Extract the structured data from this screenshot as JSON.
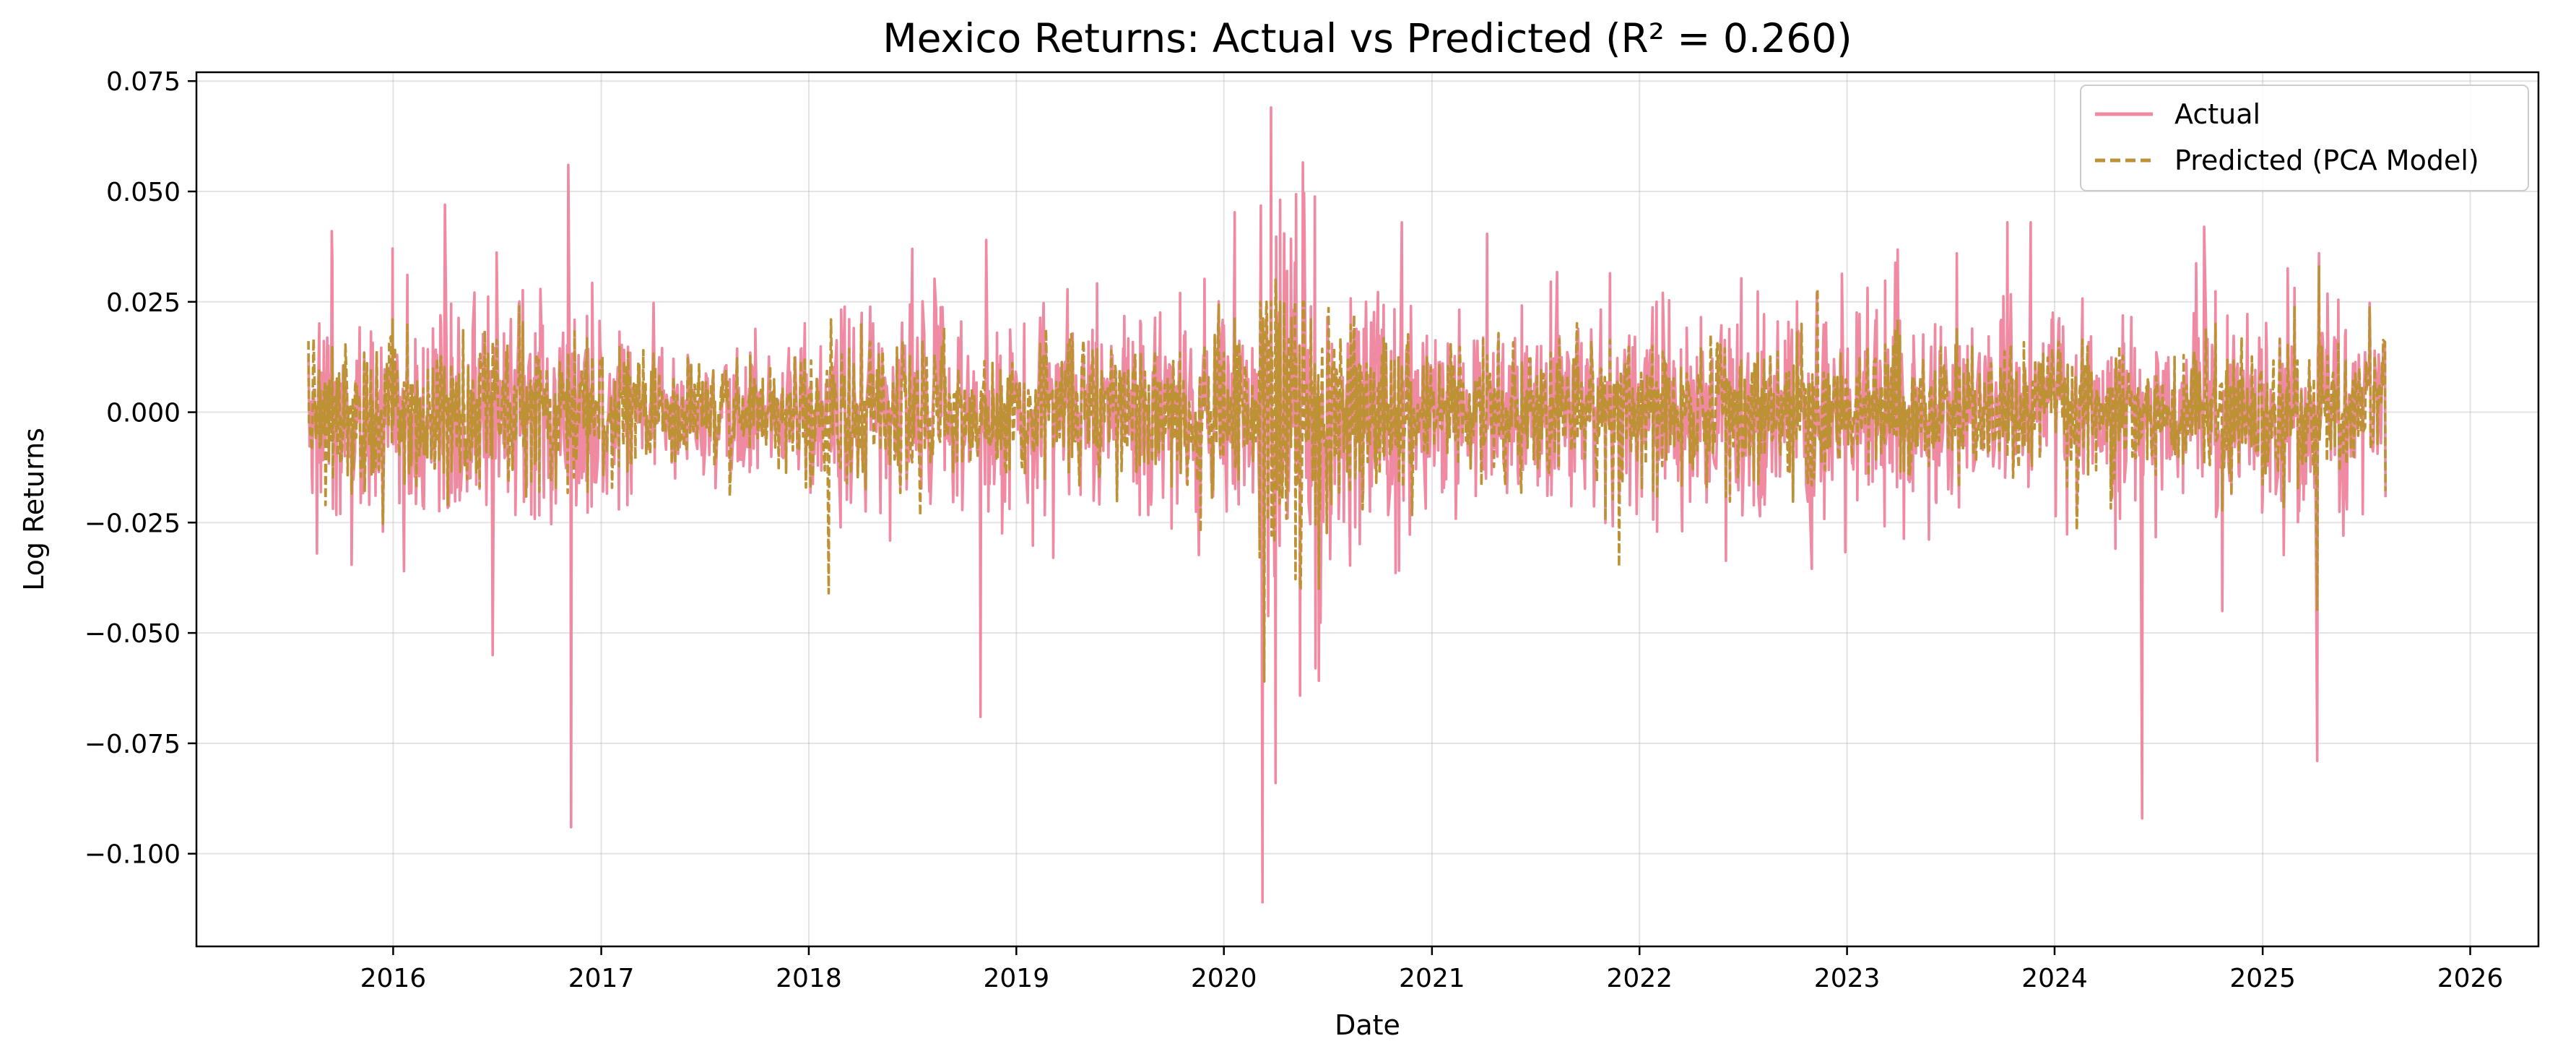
{
  "chart_data": {
    "type": "line",
    "title": "Mexico Returns: Actual vs Predicted (R² = 0.260)",
    "xlabel": "Date",
    "ylabel": "Log Returns",
    "x_range": [
      "2015-01-20",
      "2026-05-01"
    ],
    "x_ticks": [
      "2016",
      "2017",
      "2018",
      "2019",
      "2020",
      "2021",
      "2022",
      "2023",
      "2024",
      "2025",
      "2026"
    ],
    "ylim": [
      -0.121,
      0.077
    ],
    "y_ticks": [
      0.075,
      0.05,
      0.025,
      0.0,
      -0.025,
      -0.05,
      -0.075,
      -0.1
    ],
    "y_tick_labels": [
      "0.075",
      "0.050",
      "0.025",
      "0.000",
      "−0.025",
      "−0.050",
      "−0.075",
      "−0.100"
    ],
    "grid": true,
    "legend_position": "top-right",
    "series": [
      {
        "name": "Actual",
        "color": "#f08aa2",
        "style": "solid",
        "x_start": "2015-08-05",
        "x_end": "2025-08-05",
        "frequency": "daily (trading days)",
        "approx_std": 0.011,
        "notable_points": [
          {
            "x": "2015-08-20",
            "y": -0.032
          },
          {
            "x": "2015-09-15",
            "y": 0.041
          },
          {
            "x": "2016-01-20",
            "y": -0.036
          },
          {
            "x": "2016-04-01",
            "y": 0.047
          },
          {
            "x": "2016-06-24",
            "y": -0.055
          },
          {
            "x": "2016-11-09",
            "y": -0.094
          },
          {
            "x": "2016-11-04",
            "y": 0.056
          },
          {
            "x": "2018-07-02",
            "y": 0.037
          },
          {
            "x": "2018-10-30",
            "y": -0.069
          },
          {
            "x": "2018-11-10",
            "y": 0.039
          },
          {
            "x": "2020-03-09",
            "y": -0.111
          },
          {
            "x": "2020-03-24",
            "y": 0.069
          },
          {
            "x": "2020-04-01",
            "y": -0.084
          },
          {
            "x": "2020-06-10",
            "y": -0.058
          },
          {
            "x": "2020-11-09",
            "y": 0.043
          },
          {
            "x": "2023-10-10",
            "y": 0.043
          },
          {
            "x": "2023-11-20",
            "y": 0.043
          },
          {
            "x": "2024-06-03",
            "y": -0.092
          },
          {
            "x": "2024-09-20",
            "y": 0.042
          },
          {
            "x": "2025-04-07",
            "y": -0.079
          },
          {
            "x": "2025-04-10",
            "y": 0.036
          }
        ]
      },
      {
        "name": "Predicted (PCA Model)",
        "color": "#bd9235",
        "style": "dashed",
        "x_start": "2015-08-05",
        "x_end": "2025-08-05",
        "frequency": "daily (trading days)",
        "approx_std": 0.0065,
        "notable_points": [
          {
            "x": "2017-08-15",
            "y": -0.019
          },
          {
            "x": "2018-02-05",
            "y": -0.041
          },
          {
            "x": "2018-02-09",
            "y": 0.021
          },
          {
            "x": "2020-03-12",
            "y": -0.061
          },
          {
            "x": "2020-04-01",
            "y": 0.03
          },
          {
            "x": "2020-05-15",
            "y": -0.04
          },
          {
            "x": "2021-11-26",
            "y": -0.035
          },
          {
            "x": "2022-11-10",
            "y": 0.028
          },
          {
            "x": "2025-04-07",
            "y": -0.045
          },
          {
            "x": "2025-04-10",
            "y": 0.033
          }
        ]
      }
    ]
  }
}
